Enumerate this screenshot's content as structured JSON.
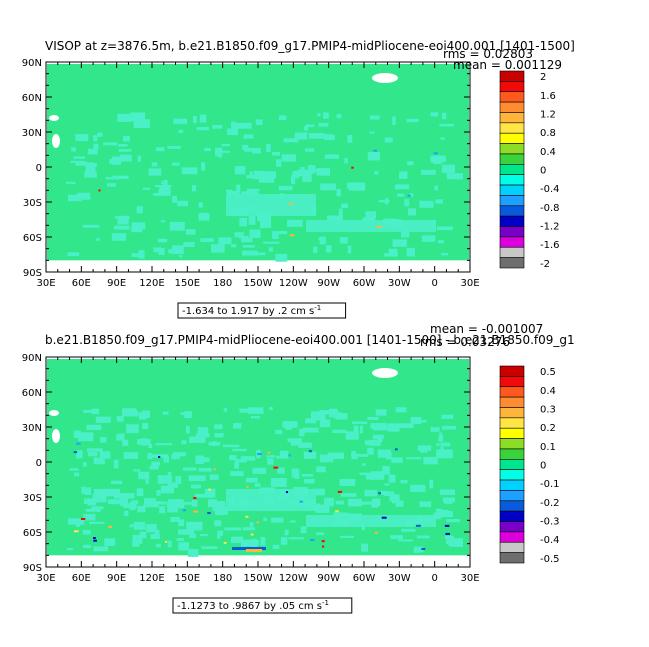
{
  "chart_data": [
    {
      "type": "heatmap",
      "title": "VISOP at z=3876.5m, b.e21.B1850.f09_g17.PMIP4-midPliocene-eoi400.001 [1401-1500]",
      "stats": {
        "mean": "mean = 0.001129",
        "rms": "rms = 0.02803"
      },
      "x_ticks": [
        "30E",
        "60E",
        "90E",
        "120E",
        "150E",
        "180",
        "150W",
        "120W",
        "90W",
        "60W",
        "30W",
        "0",
        "30E"
      ],
      "y_ticks": [
        "90N",
        "60N",
        "30N",
        "0",
        "30S",
        "60S",
        "90S"
      ],
      "range_label": "-1.634 to 1.917 by .2 cm s",
      "range_exp": "-1",
      "colorbar": {
        "labels": [
          "2",
          "1.6",
          "1.2",
          "0.8",
          "0.4",
          "0",
          "-0.4",
          "-0.8",
          "-1.2",
          "-1.6",
          "-2"
        ],
        "colors": [
          "#c80000",
          "#f00a0a",
          "#ff5a1e",
          "#ff8c32",
          "#ffb43c",
          "#ffe646",
          "#ffff00",
          "#8cdc28",
          "#3cd23c",
          "#00e68c",
          "#00ffe6",
          "#00d2ff",
          "#1ea0ff",
          "#0a5adc",
          "#0000c8",
          "#7800c8",
          "#dc00dc",
          "#c8c8c8",
          "#6e6e6e"
        ]
      },
      "field_color": "#32e68c",
      "patch_color": "#4bf0c8"
    },
    {
      "type": "heatmap",
      "title": "b.e21.B1850.f09_g17.PMIP4-midPliocene-eoi400.001 [1401-1500] - b.e21.B1850.f09_g1",
      "stats": {
        "mean": "mean = -0.001007",
        "rms": "rms = 0.03276"
      },
      "x_ticks": [
        "30E",
        "60E",
        "90E",
        "120E",
        "150E",
        "180",
        "150W",
        "120W",
        "90W",
        "60W",
        "30W",
        "0",
        "30E"
      ],
      "y_ticks": [
        "90N",
        "60N",
        "30N",
        "0",
        "30S",
        "60S",
        "90S"
      ],
      "range_label": "-1.1273 to .9867 by .05 cm s",
      "range_exp": "-1",
      "colorbar": {
        "labels": [
          "0.5",
          "0.4",
          "0.3",
          "0.2",
          "0.1",
          "0",
          "-0.1",
          "-0.2",
          "-0.3",
          "-0.4",
          "-0.5"
        ],
        "colors": [
          "#c80000",
          "#f00a0a",
          "#ff5a1e",
          "#ff8c32",
          "#ffb43c",
          "#ffe646",
          "#ffff00",
          "#8cdc28",
          "#3cd23c",
          "#00e68c",
          "#00ffe6",
          "#00d2ff",
          "#1ea0ff",
          "#0a5adc",
          "#0000c8",
          "#7800c8",
          "#dc00dc",
          "#c8c8c8",
          "#6e6e6e"
        ]
      },
      "field_color": "#32e68c",
      "patch_color": "#4bf0c8"
    }
  ]
}
